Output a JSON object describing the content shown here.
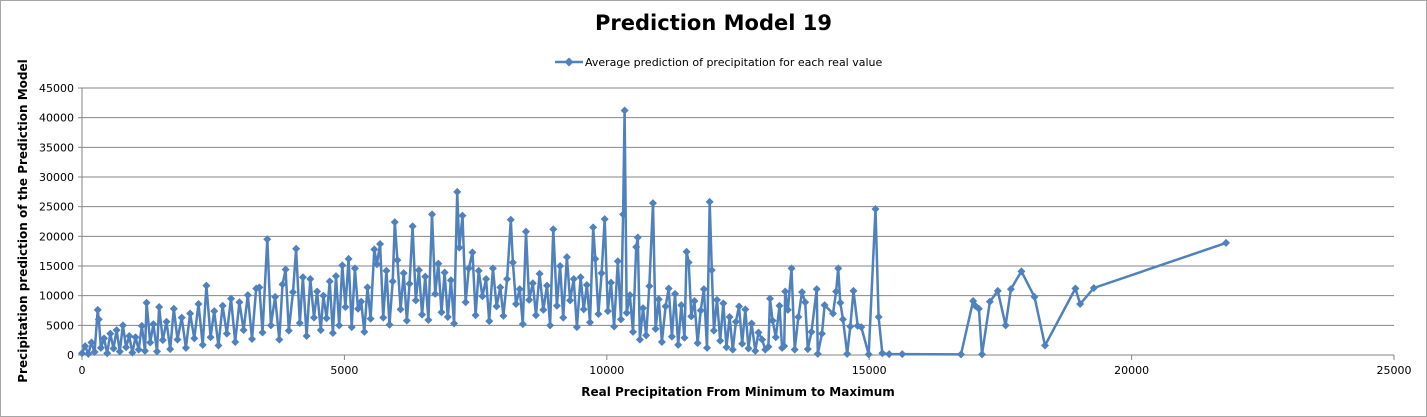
{
  "chart_data": {
    "type": "line",
    "title": "Prediction Model 19",
    "xlabel": "Real Precipitation From Minimum to Maximum",
    "ylabel": "Precipitation prediction of the Prediction Model",
    "xlim": [
      0,
      25000
    ],
    "ylim": [
      0,
      45000
    ],
    "xticks": [
      0,
      5000,
      10000,
      15000,
      20000,
      25000
    ],
    "yticks": [
      0,
      5000,
      10000,
      15000,
      20000,
      25000,
      30000,
      35000,
      40000,
      45000
    ],
    "grid": "horizontal",
    "legend_position": "top",
    "series_color": "#4f81bd",
    "marker": "diamond",
    "series": [
      {
        "name": "Average prediction of precipitation for each real value",
        "points": [
          [
            0,
            300
          ],
          [
            60,
            1500
          ],
          [
            120,
            200
          ],
          [
            180,
            2100
          ],
          [
            240,
            500
          ],
          [
            300,
            7600
          ],
          [
            320,
            6000
          ],
          [
            360,
            1200
          ],
          [
            420,
            2800
          ],
          [
            480,
            300
          ],
          [
            540,
            3600
          ],
          [
            600,
            1100
          ],
          [
            660,
            4200
          ],
          [
            720,
            600
          ],
          [
            780,
            5000
          ],
          [
            840,
            1300
          ],
          [
            900,
            3200
          ],
          [
            960,
            400
          ],
          [
            1020,
            3000
          ],
          [
            1080,
            900
          ],
          [
            1140,
            4900
          ],
          [
            1200,
            700
          ],
          [
            1230,
            8800
          ],
          [
            1300,
            2100
          ],
          [
            1360,
            5200
          ],
          [
            1430,
            600
          ],
          [
            1470,
            8100
          ],
          [
            1540,
            2500
          ],
          [
            1610,
            5600
          ],
          [
            1680,
            1000
          ],
          [
            1750,
            7800
          ],
          [
            1820,
            2600
          ],
          [
            1900,
            6300
          ],
          [
            1980,
            1200
          ],
          [
            2060,
            7000
          ],
          [
            2140,
            2800
          ],
          [
            2220,
            8600
          ],
          [
            2300,
            1700
          ],
          [
            2370,
            11700
          ],
          [
            2450,
            3000
          ],
          [
            2520,
            7400
          ],
          [
            2600,
            1600
          ],
          [
            2680,
            8300
          ],
          [
            2760,
            3600
          ],
          [
            2840,
            9500
          ],
          [
            2920,
            2200
          ],
          [
            3000,
            8900
          ],
          [
            3080,
            4200
          ],
          [
            3160,
            10100
          ],
          [
            3240,
            2700
          ],
          [
            3320,
            11200
          ],
          [
            3380,
            11400
          ],
          [
            3440,
            3800
          ],
          [
            3530,
            19500
          ],
          [
            3600,
            5000
          ],
          [
            3680,
            9800
          ],
          [
            3760,
            2600
          ],
          [
            3820,
            11900
          ],
          [
            3880,
            14400
          ],
          [
            3940,
            4100
          ],
          [
            4020,
            10600
          ],
          [
            4080,
            17900
          ],
          [
            4150,
            5400
          ],
          [
            4210,
            13100
          ],
          [
            4280,
            3200
          ],
          [
            4350,
            12800
          ],
          [
            4420,
            6300
          ],
          [
            4480,
            10700
          ],
          [
            4550,
            4200
          ],
          [
            4600,
            10000
          ],
          [
            4660,
            6200
          ],
          [
            4720,
            12400
          ],
          [
            4780,
            3700
          ],
          [
            4840,
            13300
          ],
          [
            4900,
            5000
          ],
          [
            4960,
            15100
          ],
          [
            5020,
            8100
          ],
          [
            5080,
            16200
          ],
          [
            5140,
            4700
          ],
          [
            5200,
            14600
          ],
          [
            5260,
            7800
          ],
          [
            5320,
            9000
          ],
          [
            5380,
            3900
          ],
          [
            5440,
            11400
          ],
          [
            5500,
            6100
          ],
          [
            5570,
            17800
          ],
          [
            5620,
            15300
          ],
          [
            5680,
            18700
          ],
          [
            5740,
            6300
          ],
          [
            5800,
            14200
          ],
          [
            5860,
            5100
          ],
          [
            5920,
            12400
          ],
          [
            5960,
            22400
          ],
          [
            6010,
            16000
          ],
          [
            6070,
            7700
          ],
          [
            6130,
            13800
          ],
          [
            6190,
            5800
          ],
          [
            6240,
            12000
          ],
          [
            6300,
            21700
          ],
          [
            6360,
            9200
          ],
          [
            6420,
            14300
          ],
          [
            6480,
            6800
          ],
          [
            6540,
            13200
          ],
          [
            6600,
            5900
          ],
          [
            6670,
            23700
          ],
          [
            6730,
            10300
          ],
          [
            6790,
            15400
          ],
          [
            6850,
            7200
          ],
          [
            6910,
            13900
          ],
          [
            6970,
            6400
          ],
          [
            7030,
            12600
          ],
          [
            7090,
            5300
          ],
          [
            7150,
            27500
          ],
          [
            7190,
            18100
          ],
          [
            7250,
            23500
          ],
          [
            7310,
            8900
          ],
          [
            7370,
            14600
          ],
          [
            7440,
            17300
          ],
          [
            7500,
            6700
          ],
          [
            7560,
            14200
          ],
          [
            7630,
            9900
          ],
          [
            7700,
            12800
          ],
          [
            7760,
            5700
          ],
          [
            7830,
            14600
          ],
          [
            7900,
            8200
          ],
          [
            7970,
            11400
          ],
          [
            8030,
            6600
          ],
          [
            8100,
            12800
          ],
          [
            8170,
            22800
          ],
          [
            8210,
            15600
          ],
          [
            8270,
            8600
          ],
          [
            8340,
            11100
          ],
          [
            8400,
            5200
          ],
          [
            8460,
            20800
          ],
          [
            8520,
            9300
          ],
          [
            8590,
            12100
          ],
          [
            8650,
            6700
          ],
          [
            8720,
            13700
          ],
          [
            8790,
            7600
          ],
          [
            8860,
            11700
          ],
          [
            8920,
            5000
          ],
          [
            8980,
            21200
          ],
          [
            9050,
            8300
          ],
          [
            9110,
            15000
          ],
          [
            9170,
            6300
          ],
          [
            9240,
            16500
          ],
          [
            9300,
            9200
          ],
          [
            9370,
            12800
          ],
          [
            9430,
            4700
          ],
          [
            9500,
            13100
          ],
          [
            9560,
            7700
          ],
          [
            9620,
            11800
          ],
          [
            9680,
            5500
          ],
          [
            9740,
            21500
          ],
          [
            9780,
            16200
          ],
          [
            9840,
            6900
          ],
          [
            9900,
            13800
          ],
          [
            9960,
            22900
          ],
          [
            10020,
            7400
          ],
          [
            10080,
            12200
          ],
          [
            10140,
            4800
          ],
          [
            10210,
            15800
          ],
          [
            10270,
            6000
          ],
          [
            10310,
            23700
          ],
          [
            10340,
            41200
          ],
          [
            10380,
            7100
          ],
          [
            10440,
            10100
          ],
          [
            10500,
            3900
          ],
          [
            10560,
            18200
          ],
          [
            10590,
            19800
          ],
          [
            10630,
            2600
          ],
          [
            10690,
            7900
          ],
          [
            10750,
            3300
          ],
          [
            10810,
            11600
          ],
          [
            10880,
            25600
          ],
          [
            10930,
            4400
          ],
          [
            10990,
            9400
          ],
          [
            11050,
            2200
          ],
          [
            11120,
            8200
          ],
          [
            11180,
            11200
          ],
          [
            11240,
            3100
          ],
          [
            11300,
            10300
          ],
          [
            11360,
            1700
          ],
          [
            11420,
            8400
          ],
          [
            11480,
            2900
          ],
          [
            11520,
            17400
          ],
          [
            11560,
            15600
          ],
          [
            11610,
            6500
          ],
          [
            11670,
            9100
          ],
          [
            11730,
            2000
          ],
          [
            11790,
            7500
          ],
          [
            11850,
            11100
          ],
          [
            11910,
            1200
          ],
          [
            11960,
            25800
          ],
          [
            12000,
            14300
          ],
          [
            12040,
            4100
          ],
          [
            12100,
            9300
          ],
          [
            12160,
            2400
          ],
          [
            12220,
            8700
          ],
          [
            12280,
            1300
          ],
          [
            12340,
            6400
          ],
          [
            12400,
            900
          ],
          [
            12460,
            5600
          ],
          [
            12520,
            8200
          ],
          [
            12580,
            1900
          ],
          [
            12640,
            7700
          ],
          [
            12700,
            1100
          ],
          [
            12760,
            5300
          ],
          [
            12830,
            700
          ],
          [
            12890,
            3800
          ],
          [
            12960,
            2600
          ],
          [
            13020,
            900
          ],
          [
            13080,
            1400
          ],
          [
            13110,
            9500
          ],
          [
            13160,
            5800
          ],
          [
            13220,
            3000
          ],
          [
            13290,
            8300
          ],
          [
            13340,
            1200
          ],
          [
            13380,
            1500
          ],
          [
            13400,
            10700
          ],
          [
            13450,
            7600
          ],
          [
            13520,
            14600
          ],
          [
            13580,
            900
          ],
          [
            13650,
            6400
          ],
          [
            13720,
            10600
          ],
          [
            13780,
            8900
          ],
          [
            13830,
            1000
          ],
          [
            13900,
            3900
          ],
          [
            14000,
            11100
          ],
          [
            14020,
            200
          ],
          [
            14100,
            3600
          ],
          [
            14150,
            8400
          ],
          [
            14310,
            7000
          ],
          [
            14370,
            10700
          ],
          [
            14410,
            14600
          ],
          [
            14450,
            8800
          ],
          [
            14500,
            6000
          ],
          [
            14580,
            200
          ],
          [
            14640,
            4800
          ],
          [
            14700,
            10800
          ],
          [
            14780,
            4900
          ],
          [
            14850,
            4700
          ],
          [
            14990,
            100
          ],
          [
            15120,
            24600
          ],
          [
            15180,
            6400
          ],
          [
            15250,
            300
          ],
          [
            15380,
            150
          ],
          [
            15630,
            150
          ],
          [
            16750,
            100
          ],
          [
            16980,
            9100
          ],
          [
            17020,
            8300
          ],
          [
            17090,
            7800
          ],
          [
            17150,
            100
          ],
          [
            17300,
            9000
          ],
          [
            17450,
            10800
          ],
          [
            17600,
            5000
          ],
          [
            17700,
            11100
          ],
          [
            17900,
            14100
          ],
          [
            18150,
            9800
          ],
          [
            18350,
            1600
          ],
          [
            18930,
            11200
          ],
          [
            19020,
            8600
          ],
          [
            19280,
            11300
          ],
          [
            21800,
            18900
          ]
        ]
      }
    ]
  }
}
